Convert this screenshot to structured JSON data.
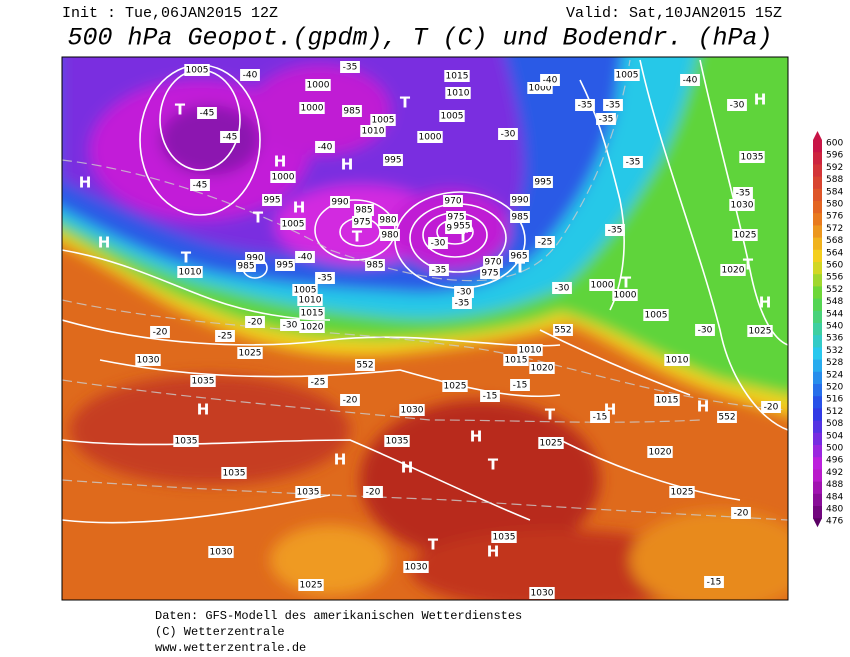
{
  "header": {
    "init": "Init : Tue,06JAN2015 12Z",
    "valid": "Valid: Sat,10JAN2015 15Z",
    "title": "500 hPa Geopot.(gpdm), T (C) und Bodendr. (hPa)"
  },
  "map": {
    "highs_lows": [
      "H",
      "H",
      "H",
      "H",
      "H",
      "H",
      "H",
      "H",
      "H",
      "H",
      "H",
      "H",
      "H",
      "H",
      "T",
      "T",
      "T",
      "T",
      "T",
      "T",
      "T",
      "T",
      "T",
      "T",
      "T",
      "T"
    ],
    "isobar_labels": [
      "1005",
      "1000",
      "1000",
      "985",
      "1005",
      "1010",
      "1015",
      "1010",
      "1005",
      "1000",
      "1000",
      "995",
      "995",
      "990",
      "985",
      "980",
      "980",
      "975",
      "975",
      "970",
      "960",
      "955",
      "965",
      "970",
      "975",
      "985",
      "990",
      "995",
      "1005",
      "990",
      "985",
      "1000",
      "995",
      "985",
      "1005",
      "1010",
      "1015",
      "1020",
      "1010",
      "1005",
      "1000",
      "1000",
      "1005",
      "1010",
      "1015",
      "1020",
      "1025",
      "1030",
      "1035",
      "1025",
      "1020",
      "1025",
      "1030",
      "1025",
      "1035",
      "1030",
      "1035",
      "1035",
      "1035",
      "1035",
      "1030",
      "1025",
      "1030",
      "1035",
      "1030",
      "1025",
      "1010",
      "1015",
      "1020",
      "1025"
    ],
    "temp_labels": [
      "-40",
      "-45",
      "-45",
      "-45",
      "-40",
      "-40",
      "-35",
      "-30",
      "-20",
      "-20",
      "-25",
      "-35",
      "-40",
      "-35",
      "-35",
      "-35",
      "-30",
      "-35",
      "-35",
      "-30",
      "-35",
      "-30",
      "-40",
      "-25",
      "-30",
      "-25",
      "-20",
      "-15",
      "-15",
      "-15",
      "-20",
      "-20",
      "-20",
      "-15",
      "-30",
      "-35",
      "-30",
      "-35",
      "552",
      "552",
      "552"
    ]
  },
  "colorbar": {
    "ticks": [
      600,
      596,
      592,
      588,
      584,
      580,
      576,
      572,
      568,
      564,
      560,
      556,
      552,
      548,
      544,
      540,
      536,
      532,
      528,
      524,
      520,
      516,
      512,
      508,
      504,
      500,
      496,
      492,
      488,
      484,
      480,
      476
    ]
  },
  "footer": {
    "line1": "Daten: GFS-Modell des amerikanischen Wetterdienstes",
    "line2": "(C) Wetterzentrale",
    "line3": "www.wetterzentrale.de"
  }
}
